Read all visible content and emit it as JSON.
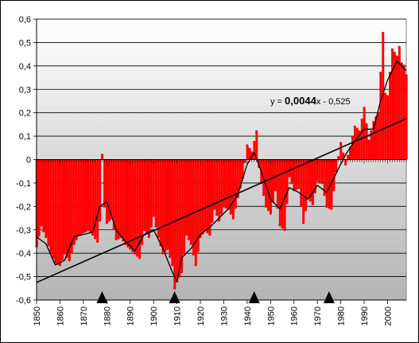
{
  "chart_data": {
    "type": "bar",
    "title": "",
    "xlabel": "",
    "ylabel": "",
    "x_range": [
      1850,
      2008
    ],
    "ylim": [
      -0.6,
      0.6
    ],
    "y_ticks": [
      "0,6",
      "0,5",
      "0,4",
      "0,3",
      "0,2",
      "0,1",
      "0",
      "-0,1",
      "-0,2",
      "-0,3",
      "-0,4",
      "-0,5",
      "-0,6"
    ],
    "x_ticks": [
      "1850",
      "1860",
      "1870",
      "1880",
      "1890",
      "1900",
      "1910",
      "1920",
      "1930",
      "1940",
      "1950",
      "1960",
      "1970",
      "1980",
      "1990",
      "2000"
    ],
    "grid": true,
    "bar_color": "#ff0000",
    "line_color": "#000000",
    "trend": {
      "label_prefix": "y = ",
      "slope_label": "0,0044",
      "label_suffix": "x - 0,525",
      "slope": 0.0044,
      "intercept": -0.525
    },
    "markers": [
      1878,
      1909,
      1943,
      1975
    ],
    "anchors": [
      [
        1850,
        -0.37
      ],
      [
        1852,
        -0.28
      ],
      [
        1854,
        -0.33
      ],
      [
        1856,
        -0.4
      ],
      [
        1858,
        -0.44
      ],
      [
        1860,
        -0.45
      ],
      [
        1862,
        -0.4
      ],
      [
        1864,
        -0.43
      ],
      [
        1866,
        -0.36
      ],
      [
        1868,
        -0.32
      ],
      [
        1870,
        -0.31
      ],
      [
        1872,
        -0.3
      ],
      [
        1874,
        -0.32
      ],
      [
        1876,
        -0.35
      ],
      [
        1877,
        -0.26
      ],
      [
        1878,
        0.02
      ],
      [
        1879,
        -0.2
      ],
      [
        1880,
        -0.27
      ],
      [
        1882,
        -0.25
      ],
      [
        1884,
        -0.34
      ],
      [
        1886,
        -0.33
      ],
      [
        1888,
        -0.36
      ],
      [
        1890,
        -0.38
      ],
      [
        1892,
        -0.4
      ],
      [
        1894,
        -0.42
      ],
      [
        1896,
        -0.3
      ],
      [
        1898,
        -0.33
      ],
      [
        1900,
        -0.24
      ],
      [
        1902,
        -0.33
      ],
      [
        1904,
        -0.4
      ],
      [
        1906,
        -0.38
      ],
      [
        1908,
        -0.45
      ],
      [
        1909,
        -0.55
      ],
      [
        1910,
        -0.52
      ],
      [
        1912,
        -0.48
      ],
      [
        1914,
        -0.32
      ],
      [
        1916,
        -0.36
      ],
      [
        1918,
        -0.45
      ],
      [
        1920,
        -0.33
      ],
      [
        1922,
        -0.3
      ],
      [
        1924,
        -0.32
      ],
      [
        1926,
        -0.21
      ],
      [
        1928,
        -0.26
      ],
      [
        1930,
        -0.2
      ],
      [
        1932,
        -0.21
      ],
      [
        1934,
        -0.25
      ],
      [
        1936,
        -0.16
      ],
      [
        1938,
        -0.08
      ],
      [
        1940,
        0.06
      ],
      [
        1942,
        0.03
      ],
      [
        1944,
        0.12
      ],
      [
        1945,
        -0.03
      ],
      [
        1946,
        -0.1
      ],
      [
        1948,
        -0.2
      ],
      [
        1950,
        -0.23
      ],
      [
        1952,
        -0.13
      ],
      [
        1954,
        -0.28
      ],
      [
        1956,
        -0.3
      ],
      [
        1958,
        -0.07
      ],
      [
        1960,
        -0.13
      ],
      [
        1962,
        -0.12
      ],
      [
        1964,
        -0.27
      ],
      [
        1966,
        -0.16
      ],
      [
        1968,
        -0.19
      ],
      [
        1970,
        -0.09
      ],
      [
        1972,
        -0.1
      ],
      [
        1974,
        -0.2
      ],
      [
        1976,
        -0.21
      ],
      [
        1978,
        -0.05
      ],
      [
        1980,
        0.07
      ],
      [
        1982,
        -0.02
      ],
      [
        1984,
        0.05
      ],
      [
        1986,
        0.14
      ],
      [
        1988,
        0.12
      ],
      [
        1990,
        0.22
      ],
      [
        1992,
        0.08
      ],
      [
        1994,
        0.16
      ],
      [
        1996,
        0.2
      ],
      [
        1998,
        0.54
      ],
      [
        1999,
        0.28
      ],
      [
        2000,
        0.27
      ],
      [
        2002,
        0.47
      ],
      [
        2004,
        0.44
      ],
      [
        2005,
        0.48
      ],
      [
        2006,
        0.41
      ],
      [
        2007,
        0.4
      ],
      [
        2008,
        0.36
      ]
    ],
    "smoothed": [
      [
        1850,
        -0.33
      ],
      [
        1854,
        -0.36
      ],
      [
        1858,
        -0.45
      ],
      [
        1862,
        -0.43
      ],
      [
        1866,
        -0.33
      ],
      [
        1870,
        -0.32
      ],
      [
        1874,
        -0.31
      ],
      [
        1877,
        -0.2
      ],
      [
        1880,
        -0.18
      ],
      [
        1884,
        -0.3
      ],
      [
        1888,
        -0.35
      ],
      [
        1892,
        -0.39
      ],
      [
        1896,
        -0.32
      ],
      [
        1900,
        -0.3
      ],
      [
        1904,
        -0.38
      ],
      [
        1908,
        -0.48
      ],
      [
        1910,
        -0.52
      ],
      [
        1912,
        -0.42
      ],
      [
        1916,
        -0.38
      ],
      [
        1920,
        -0.32
      ],
      [
        1924,
        -0.29
      ],
      [
        1928,
        -0.25
      ],
      [
        1932,
        -0.21
      ],
      [
        1936,
        -0.15
      ],
      [
        1940,
        -0.02
      ],
      [
        1943,
        0.03
      ],
      [
        1946,
        -0.05
      ],
      [
        1950,
        -0.17
      ],
      [
        1954,
        -0.21
      ],
      [
        1958,
        -0.12
      ],
      [
        1962,
        -0.14
      ],
      [
        1966,
        -0.17
      ],
      [
        1970,
        -0.11
      ],
      [
        1974,
        -0.14
      ],
      [
        1978,
        -0.06
      ],
      [
        1982,
        0.02
      ],
      [
        1986,
        0.08
      ],
      [
        1990,
        0.13
      ],
      [
        1994,
        0.13
      ],
      [
        1997,
        0.25
      ],
      [
        2000,
        0.34
      ],
      [
        2004,
        0.42
      ],
      [
        2008,
        0.38
      ]
    ]
  }
}
